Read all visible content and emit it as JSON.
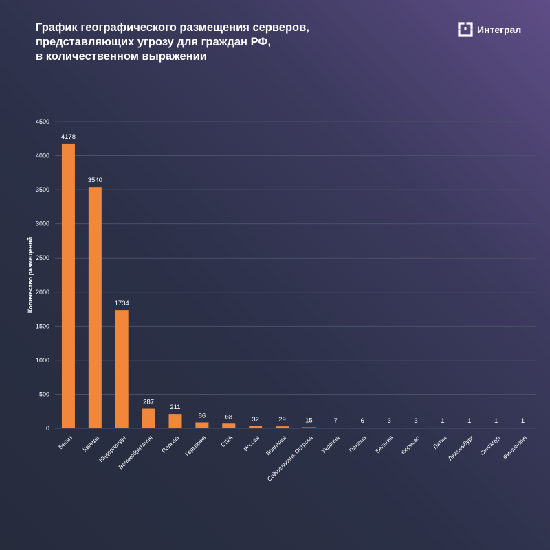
{
  "header": {
    "title_lines": [
      "График географического размещения серверов,",
      "представляющих угрозу для граждан РФ,",
      "в количественном выражении"
    ],
    "logo_text": "Интеграл",
    "logo_icon": "integral-logo-icon"
  },
  "colors": {
    "bar": "#f0873a",
    "grid": "#4a5068",
    "text": "#ffffff"
  },
  "chart_data": {
    "type": "bar",
    "title": "График географического размещения серверов, представляющих угрозу для граждан РФ, в количественном выражении",
    "xlabel": "",
    "ylabel": "Количество размещений",
    "ylim": [
      0,
      4500
    ],
    "yticks": [
      0,
      500,
      1000,
      1500,
      2000,
      2500,
      3000,
      3500,
      4000,
      4500
    ],
    "grid": true,
    "categories": [
      "Белиз",
      "Канада",
      "Нидерланды",
      "Великобритания",
      "Польша",
      "Германия",
      "США",
      "Россия",
      "Болгария",
      "Сейшельские Острова",
      "Украина",
      "Панама",
      "Бельгия",
      "Кюрасао",
      "Литва",
      "Люксембург",
      "Сингапур",
      "Финляндия"
    ],
    "values": [
      4178,
      3540,
      1734,
      287,
      211,
      86,
      68,
      32,
      29,
      15,
      7,
      6,
      3,
      3,
      1,
      1,
      1,
      1
    ]
  }
}
